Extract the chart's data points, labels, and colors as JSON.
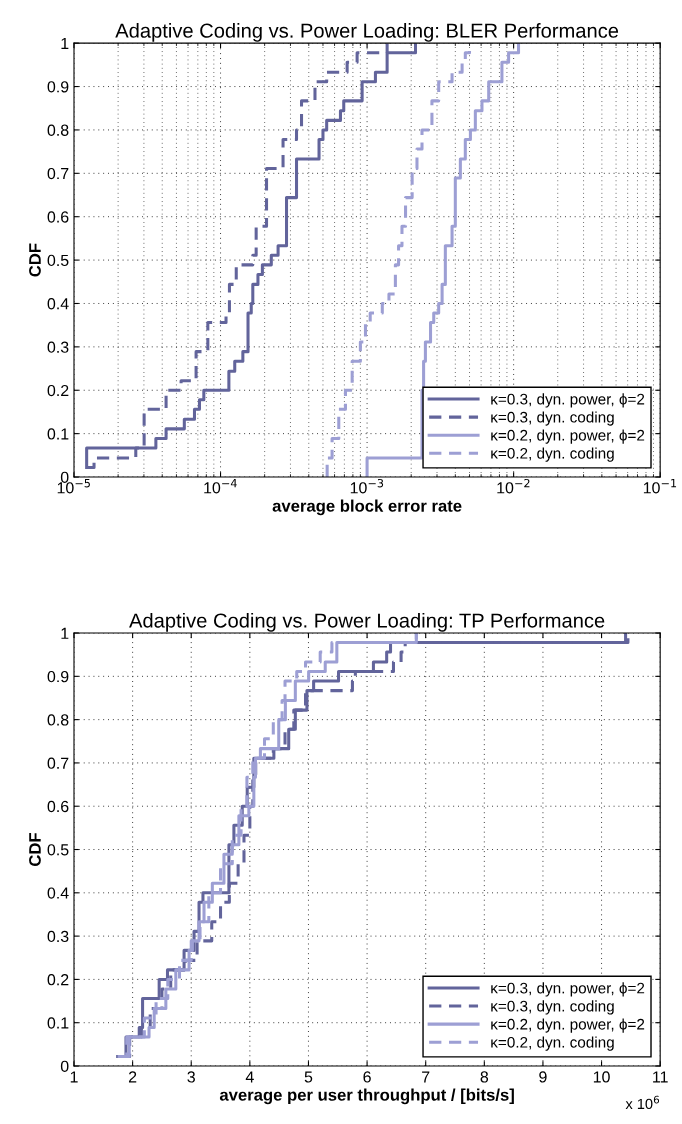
{
  "chart_data": [
    {
      "type": "step",
      "title": "Adaptive Coding vs. Power Loading: BLER Performance",
      "xlabel": "average block error rate",
      "ylabel": "CDF",
      "log": "x",
      "xlim": [
        1e-05,
        0.1
      ],
      "xticks": [
        {
          "value": 1e-05,
          "label": "10$^{−5}$"
        },
        {
          "value": 0.0001,
          "label": "10$^{−4}$"
        },
        {
          "value": 0.001,
          "label": "10$^{−3}$"
        },
        {
          "value": 0.01,
          "label": "10$^{−2}$"
        },
        {
          "value": 0.1,
          "label": "10$^{−1}$"
        }
      ],
      "ylim": [
        0,
        1
      ],
      "yticks": [
        0,
        0.1,
        0.2,
        0.3,
        0.4,
        0.5,
        0.6,
        0.7,
        0.8,
        0.9,
        1
      ],
      "grid": true,
      "legend": "bottom right",
      "series": [
        {
          "name": "κ=0.3, dyn. power, ϕ=2",
          "color": "#62649b",
          "line_style": "solid",
          "x": [
            1.22e-05,
            1.22e-05,
            3.62e-05,
            4.25e-05,
            5.66e-05,
            6.64e-05,
            7.18e-05,
            7.69e-05,
            0.000114,
            0.000125,
            0.000142,
            0.000154,
            0.000162,
            0.000166,
            0.00018,
            0.000193,
            0.000222,
            0.000247,
            0.000282,
            0.00033,
            0.00047,
            0.0005,
            0.00053,
            0.000658,
            0.000693,
            0.000925,
            0.00114,
            0.00137,
            0.00214
          ],
          "values": [
            0.022,
            0.067,
            0.089,
            0.111,
            0.133,
            0.156,
            0.178,
            0.2,
            0.244,
            0.267,
            0.289,
            0.378,
            0.4,
            0.444,
            0.467,
            0.489,
            0.511,
            0.533,
            0.644,
            0.733,
            0.778,
            0.8,
            0.822,
            0.844,
            0.867,
            0.911,
            0.933,
            0.978,
            1.0
          ]
        },
        {
          "name": "κ=0.3, dyn. coding",
          "color": "#62649b",
          "line_style": "dashed",
          "x": [
            1.22e-05,
            1.37e-05,
            2.64e-05,
            3.01e-05,
            4.25e-05,
            5.38e-05,
            6.81e-05,
            8.19e-05,
            0.000109,
            0.000115,
            0.000128,
            0.000166,
            0.000175,
            0.000206,
            0.000267,
            0.00033,
            0.000357,
            0.000441,
            0.00053,
            0.000731,
            0.000855,
            0.00137
          ],
          "values": [
            0.022,
            0.044,
            0.067,
            0.156,
            0.2,
            0.222,
            0.289,
            0.356,
            0.378,
            0.444,
            0.489,
            0.511,
            0.578,
            0.711,
            0.778,
            0.8,
            0.867,
            0.911,
            0.933,
            0.956,
            0.978,
            1.0
          ]
        },
        {
          "name": "κ=0.2, dyn. power, ϕ=2",
          "color": "#9d9fd4",
          "line_style": "solid",
          "x": [
            0.001,
            0.001,
            0.00237,
            0.00243,
            0.0025,
            0.00271,
            0.00285,
            0.00308,
            0.00325,
            0.00342,
            0.0038,
            0.004,
            0.00433,
            0.00468,
            0.00507,
            0.00548,
            0.00608,
            0.00676,
            0.00832,
            0.00924,
            0.0108
          ],
          "values": [
            0.0,
            0.044,
            0.2,
            0.267,
            0.311,
            0.356,
            0.378,
            0.4,
            0.444,
            0.533,
            0.578,
            0.689,
            0.733,
            0.778,
            0.8,
            0.844,
            0.867,
            0.911,
            0.956,
            0.978,
            1.0
          ]
        },
        {
          "name": "κ=0.2, dyn. coding",
          "color": "#9d9fd4",
          "line_style": "dashed",
          "x": [
            0.000534,
            0.000534,
            0.000577,
            0.000641,
            0.000712,
            0.000791,
            0.0009,
            0.000975,
            0.00105,
            0.00127,
            0.00141,
            0.00156,
            0.00164,
            0.00173,
            0.00183,
            0.00203,
            0.00219,
            0.00237,
            0.00277,
            0.00308,
            0.0038,
            0.00445,
            0.00468,
            0.005
          ],
          "values": [
            0.0,
            0.044,
            0.089,
            0.156,
            0.2,
            0.267,
            0.311,
            0.356,
            0.378,
            0.4,
            0.422,
            0.489,
            0.533,
            0.578,
            0.644,
            0.711,
            0.756,
            0.8,
            0.867,
            0.911,
            0.933,
            0.956,
            0.978,
            1.0
          ]
        }
      ]
    },
    {
      "type": "step",
      "title": "Adaptive Coding vs. Power Loading: TP Performance",
      "xlabel": "average per user throughput / [bits/s]",
      "ylabel": "CDF",
      "xlim": [
        1,
        11
      ],
      "xticks": [
        1,
        2,
        3,
        4,
        5,
        6,
        7,
        8,
        9,
        10,
        11
      ],
      "ylim": [
        0,
        1
      ],
      "yticks": [
        0,
        0.1,
        0.2,
        0.3,
        0.4,
        0.5,
        0.6,
        0.7,
        0.8,
        0.9,
        1
      ],
      "grid": true,
      "legend": "bottom right",
      "annotations": [
        "x 10$^{6}$"
      ],
      "series": [
        {
          "name": "κ=0.3, dyn. power, ϕ=2",
          "color": "#62649b",
          "line_style": "solid",
          "x": [
            1.745,
            1.887,
            2.113,
            2.17,
            2.453,
            2.595,
            2.878,
            3.048,
            3.133,
            3.2,
            3.643,
            3.728,
            3.87,
            3.955,
            4.068,
            4.41,
            4.663,
            4.776,
            4.974,
            5.088,
            5.513,
            6.108,
            6.334,
            6.4,
            10.41
          ],
          "values": [
            0.022,
            0.067,
            0.089,
            0.156,
            0.2,
            0.222,
            0.267,
            0.311,
            0.378,
            0.4,
            0.511,
            0.556,
            0.6,
            0.644,
            0.711,
            0.733,
            0.778,
            0.822,
            0.867,
            0.889,
            0.911,
            0.933,
            0.956,
            0.978,
            1.0
          ]
        },
        {
          "name": "κ=0.3, dyn. coding",
          "color": "#62649b",
          "line_style": "dashed",
          "x": [
            1.79,
            1.95,
            2.15,
            2.3,
            2.5,
            2.65,
            2.9,
            3.1,
            3.35,
            3.5,
            3.65,
            3.8,
            3.9,
            4.0,
            4.05,
            4.1,
            4.4,
            4.6,
            4.75,
            4.95,
            5.75,
            5.8,
            6.45,
            6.58,
            6.65,
            10.45
          ],
          "values": [
            0.022,
            0.067,
            0.089,
            0.133,
            0.178,
            0.222,
            0.244,
            0.289,
            0.333,
            0.378,
            0.422,
            0.467,
            0.533,
            0.6,
            0.667,
            0.711,
            0.733,
            0.778,
            0.822,
            0.867,
            0.889,
            0.911,
            0.933,
            0.956,
            0.978,
            1.0
          ]
        },
        {
          "name": "κ=0.2, dyn. power, ϕ=2",
          "color": "#9d9fd4",
          "line_style": "solid",
          "x": [
            1.77,
            1.943,
            2.28,
            2.368,
            2.567,
            2.737,
            2.963,
            3.02,
            3.133,
            3.218,
            3.36,
            3.558,
            3.7,
            3.813,
            3.983,
            4.068,
            4.096,
            4.18,
            4.493,
            4.606,
            4.776,
            5.003,
            5.286,
            5.484,
            6.84
          ],
          "values": [
            0.022,
            0.067,
            0.089,
            0.133,
            0.178,
            0.222,
            0.267,
            0.289,
            0.333,
            0.378,
            0.422,
            0.489,
            0.511,
            0.578,
            0.6,
            0.667,
            0.711,
            0.733,
            0.8,
            0.844,
            0.889,
            0.911,
            0.933,
            0.978,
            1.0
          ]
        },
        {
          "name": "κ=0.2, dyn. coding",
          "color": "#9d9fd4",
          "line_style": "dashed",
          "x": [
            1.76,
            1.9,
            2.2,
            2.4,
            2.6,
            2.8,
            3.0,
            3.15,
            3.3,
            3.5,
            3.7,
            3.85,
            3.95,
            4.05,
            4.25,
            4.4,
            4.55,
            4.6,
            4.8,
            4.95,
            5.2,
            5.4,
            6.84
          ],
          "values": [
            0.022,
            0.067,
            0.111,
            0.156,
            0.2,
            0.244,
            0.289,
            0.333,
            0.4,
            0.467,
            0.533,
            0.6,
            0.667,
            0.711,
            0.756,
            0.8,
            0.844,
            0.889,
            0.911,
            0.933,
            0.956,
            0.978,
            1.0
          ]
        }
      ]
    }
  ]
}
